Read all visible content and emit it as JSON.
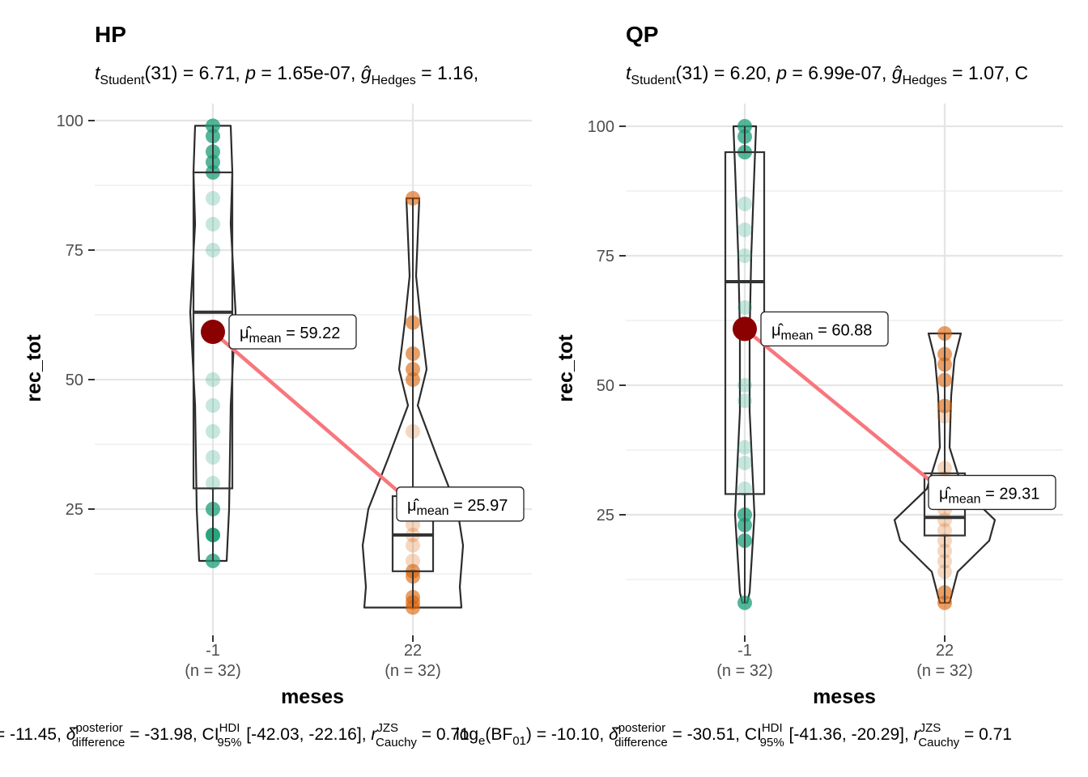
{
  "chart_data": [
    {
      "type": "violin-box-scatter",
      "title": "HP",
      "subtitle": "tStudent(31) = 6.71, p = 1.65e-07, ĝHedges = 1.16,",
      "xlabel": "meses",
      "ylabel": "rec_tot",
      "ylim": [
        5,
        104
      ],
      "yticks": [
        25,
        50,
        75,
        100
      ],
      "grid": true,
      "categories": [
        {
          "label": "-1",
          "n_label": "(n = 32)",
          "color": "#1b9e77",
          "points": [
            99,
            97,
            94,
            92,
            90,
            85,
            80,
            75,
            50,
            45,
            40,
            35,
            30,
            25,
            20,
            20,
            15
          ],
          "box": {
            "q1": 29,
            "median": 63,
            "q3": 90,
            "lo": 15,
            "hi": 99
          },
          "mean": 59.22,
          "mean_label": "= 59.22"
        },
        {
          "label": "22",
          "n_label": "(n = 32)",
          "color": "#d95f02",
          "points": [
            85,
            61,
            55,
            52,
            50,
            40,
            26,
            22,
            20,
            18,
            15,
            13,
            12,
            8,
            7,
            6
          ],
          "box": {
            "q1": 13,
            "median": 20,
            "q3": 27.5,
            "lo": 6,
            "hi": 85
          },
          "mean": 25.97,
          "mean_label": "= 25.97"
        }
      ]
    },
    {
      "type": "violin-box-scatter",
      "title": "QP",
      "subtitle": "tStudent(31) = 6.20, p = 6.99e-07, ĝHedges = 1.07, C",
      "xlabel": "meses",
      "ylabel": "rec_tot",
      "ylim": [
        2,
        104
      ],
      "yticks": [
        25,
        50,
        75,
        100
      ],
      "grid": true,
      "categories": [
        {
          "label": "-1",
          "n_label": "(n = 32)",
          "color": "#1b9e77",
          "points": [
            100,
            98,
            95,
            85,
            80,
            75,
            65,
            60,
            50,
            47,
            38,
            35,
            30,
            25,
            23,
            20,
            8
          ],
          "box": {
            "q1": 29,
            "median": 70,
            "q3": 95,
            "lo": 8,
            "hi": 100
          },
          "mean": 60.88,
          "mean_label": "= 60.88"
        },
        {
          "label": "22",
          "n_label": "(n = 32)",
          "color": "#d95f02",
          "points": [
            60,
            56,
            54,
            51,
            46,
            44,
            34,
            32,
            30,
            28,
            26,
            24,
            22,
            20,
            18,
            16,
            14,
            10,
            8
          ],
          "box": {
            "q1": 21,
            "median": 24.5,
            "q3": 33,
            "lo": 8,
            "hi": 60
          },
          "mean": 29.31,
          "mean_label": "= 29.31"
        }
      ]
    }
  ],
  "captions": {
    "left": "= -11.45, δ̂posterior difference = -31.98, CI HDI 95% [-42.03, -22.16], r JZS Cauchy = 0.71",
    "right": "log e(BF01) = -10.10, δ̂posterior difference = -30.51, CI HDI 95% [-41.36, -20.29], r JZS Cauchy = 0.71"
  },
  "mean_symbol": "μ̂",
  "mean_sub": "mean"
}
